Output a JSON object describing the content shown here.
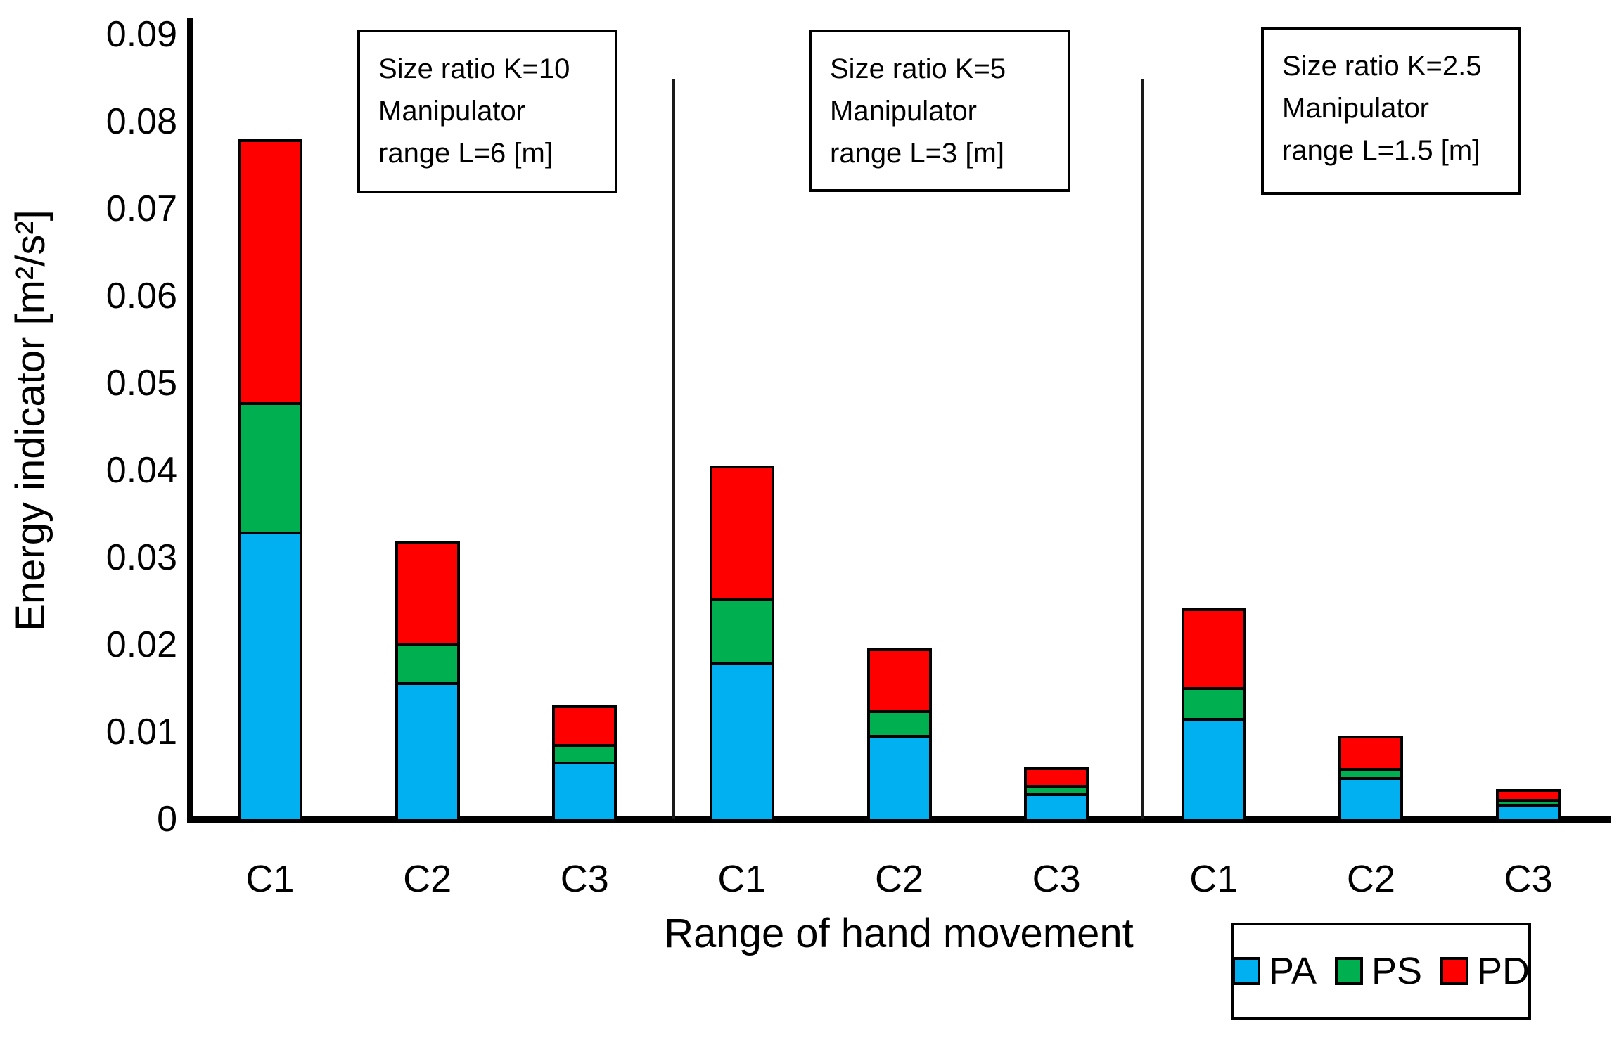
{
  "figure": {
    "background": "#ffffff",
    "y_axis": {
      "title": "Energy indicator [m²/s²]",
      "ticks": [
        "0",
        "0.01",
        "0.02",
        "0.03",
        "0.04",
        "0.05",
        "0.06",
        "0.07",
        "0.08",
        "0.09"
      ],
      "min": 0,
      "max": 0.09,
      "step": 0.01
    },
    "x_axis": {
      "title": "Range of hand movement"
    },
    "annotations": [
      {
        "lines": [
          "Size ratio K=10",
          "Manipulator",
          "range L=6 [m]"
        ]
      },
      {
        "lines": [
          "Size ratio K=5",
          "Manipulator",
          "range L=3 [m]"
        ]
      },
      {
        "lines": [
          "Size ratio K=2.5",
          "Manipulator",
          "range L=1.5 [m]"
        ]
      }
    ],
    "legend": [
      {
        "label": "PA",
        "color": "#00B0F0"
      },
      {
        "label": "PS",
        "color": "#00B050"
      },
      {
        "label": "PD",
        "color": "#FF0000"
      }
    ]
  },
  "chart_data": {
    "type": "bar",
    "stacked": true,
    "title": "",
    "xlabel": "Range of hand movement",
    "ylabel": "Energy indicator [m²/s²]",
    "ylim": [
      0,
      0.09
    ],
    "grid": false,
    "legend_position": "bottom-right",
    "colors": {
      "PA": "#00B0F0",
      "PS": "#00B050",
      "PD": "#FF0000"
    },
    "series_order": [
      "PA",
      "PS",
      "PD"
    ],
    "groups": [
      {
        "label": "Size ratio K=10, Manipulator range L=6 [m]",
        "categories": [
          "C1",
          "C2",
          "C3"
        ],
        "series": [
          {
            "name": "PA",
            "values": [
              0.033,
              0.0157,
              0.0066
            ]
          },
          {
            "name": "PS",
            "values": [
              0.0148,
              0.0045,
              0.002
            ]
          },
          {
            "name": "PD",
            "values": [
              0.0302,
              0.0117,
              0.0045
            ]
          }
        ],
        "totals": [
          0.078,
          0.0319,
          0.0131
        ]
      },
      {
        "label": "Size ratio K=5, Manipulator range L=3 [m]",
        "categories": [
          "C1",
          "C2",
          "C3"
        ],
        "series": [
          {
            "name": "PA",
            "values": [
              0.0181,
              0.0097,
              0.003
            ]
          },
          {
            "name": "PS",
            "values": [
              0.0073,
              0.0028,
              0.0009
            ]
          },
          {
            "name": "PD",
            "values": [
              0.0152,
              0.0071,
              0.0021
            ]
          }
        ],
        "totals": [
          0.0406,
          0.0196,
          0.006
        ]
      },
      {
        "label": "Size ratio K=2.5, Manipulator range L=1.5 [m]",
        "categories": [
          "C1",
          "C2",
          "C3"
        ],
        "series": [
          {
            "name": "PA",
            "values": [
              0.0116,
              0.0048,
              0.0018
            ]
          },
          {
            "name": "PS",
            "values": [
              0.0036,
              0.0011,
              0.0005
            ]
          },
          {
            "name": "PD",
            "values": [
              0.009,
              0.0037,
              0.0012
            ]
          }
        ],
        "totals": [
          0.0242,
          0.0096,
          0.0035
        ]
      }
    ]
  }
}
